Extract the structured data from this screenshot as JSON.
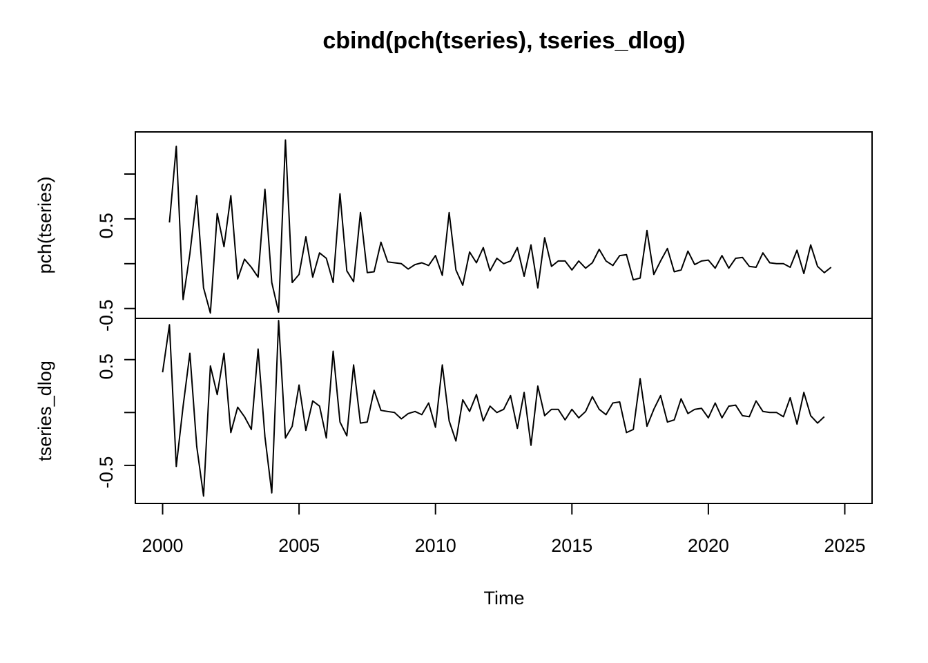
{
  "chart_data": {
    "type": "line",
    "title": "cbind(pch(tseries), tseries_dlog)",
    "xlabel": "Time",
    "frequency": 4,
    "x_start": 2000.0,
    "xlim": [
      2000,
      2025
    ],
    "x_ticks": [
      2000,
      2005,
      2010,
      2015,
      2020,
      2025
    ],
    "x_tick_labels": [
      "2000",
      "2005",
      "2010",
      "2015",
      "2020",
      "2025"
    ],
    "panels": [
      {
        "ylabel": "pch(tseries)",
        "ylim": [
          -0.61,
          1.47
        ],
        "y_ticks": [
          -0.5,
          0,
          0.5,
          1
        ],
        "y_tick_labels": [
          "-0.5",
          "",
          "0.5",
          ""
        ],
        "series": [
          {
            "x_start": 2000.25,
            "values": [
              0.46,
              1.31,
              -0.4,
              0.11,
              0.76,
              -0.27,
              -0.55,
              0.56,
              0.19,
              0.76,
              -0.17,
              0.05,
              -0.04,
              -0.15,
              0.83,
              -0.21,
              -0.54,
              1.38,
              -0.21,
              -0.12,
              0.3,
              -0.15,
              0.12,
              0.06,
              -0.21,
              0.78,
              -0.08,
              -0.2,
              0.57,
              -0.1,
              -0.09,
              0.24,
              0.02,
              0.01,
              0.0,
              -0.06,
              -0.01,
              0.01,
              -0.02,
              0.09,
              -0.13,
              0.57,
              -0.07,
              -0.24,
              0.13,
              0.01,
              0.18,
              -0.08,
              0.06,
              0.0,
              0.03,
              0.18,
              -0.14,
              0.21,
              -0.27,
              0.29,
              -0.03,
              0.03,
              0.03,
              -0.07,
              0.03,
              -0.05,
              0.01,
              0.16,
              0.03,
              -0.02,
              0.09,
              0.1,
              -0.18,
              -0.16,
              0.37,
              -0.12,
              0.03,
              0.17,
              -0.09,
              -0.07,
              0.14,
              -0.01,
              0.03,
              0.04,
              -0.05,
              0.09,
              -0.05,
              0.06,
              0.07,
              -0.03,
              -0.04,
              0.12,
              0.01,
              0.0,
              0.0,
              -0.04,
              0.15,
              -0.11,
              0.21,
              -0.03,
              -0.1,
              -0.04
            ]
          }
        ]
      },
      {
        "ylabel": "tseries_dlog",
        "ylim": [
          -0.86,
          0.89
        ],
        "y_ticks": [
          -0.5,
          0,
          0.5
        ],
        "y_tick_labels": [
          "-0.5",
          "",
          "0.5"
        ],
        "series": [
          {
            "x_start": 2000.0,
            "values": [
              0.38,
              0.83,
              -0.51,
              0.06,
              0.56,
              -0.32,
              -0.79,
              0.44,
              0.17,
              0.56,
              -0.19,
              0.05,
              -0.04,
              -0.16,
              0.6,
              -0.23,
              -0.76,
              0.87,
              -0.24,
              -0.13,
              0.26,
              -0.17,
              0.11,
              0.06,
              -0.24,
              0.58,
              -0.09,
              -0.22,
              0.45,
              -0.1,
              -0.09,
              0.21,
              0.02,
              0.01,
              0.0,
              -0.06,
              -0.01,
              0.01,
              -0.02,
              0.09,
              -0.14,
              0.45,
              -0.08,
              -0.27,
              0.12,
              0.01,
              0.17,
              -0.08,
              0.06,
              0.0,
              0.03,
              0.16,
              -0.15,
              0.19,
              -0.31,
              0.25,
              -0.03,
              0.03,
              0.03,
              -0.07,
              0.03,
              -0.05,
              0.01,
              0.15,
              0.03,
              -0.02,
              0.09,
              0.1,
              -0.19,
              -0.16,
              0.32,
              -0.13,
              0.03,
              0.16,
              -0.09,
              -0.07,
              0.13,
              -0.01,
              0.03,
              0.04,
              -0.05,
              0.09,
              -0.05,
              0.06,
              0.07,
              -0.03,
              -0.04,
              0.11,
              0.01,
              0.0,
              0.0,
              -0.04,
              0.14,
              -0.11,
              0.19,
              -0.03,
              -0.1,
              -0.04
            ]
          }
        ]
      }
    ]
  }
}
